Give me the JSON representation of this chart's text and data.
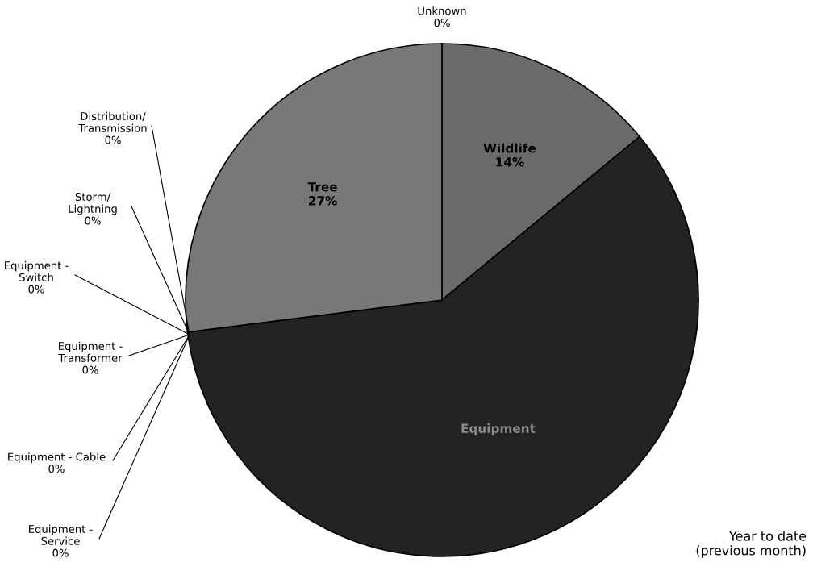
{
  "chart_data": {
    "type": "pie",
    "categories": [
      "Unknown",
      "Wildlife",
      "Equipment",
      "Equipment -\nService",
      "Equipment - Cable",
      "Equipment -\nTransformer",
      "Equipment -\nSwitch",
      "Storm/\nLightning",
      "Distribution/\nTransmission",
      "Tree"
    ],
    "values": [
      0,
      14,
      59,
      0,
      0,
      0,
      0,
      0,
      0,
      27
    ],
    "value_labels": [
      "0%",
      "14%",
      null,
      "0%",
      "0%",
      "0%",
      "0%",
      "0%",
      "0%",
      "27%"
    ],
    "colors": [
      "#c8c8c8",
      "#6a6a6a",
      "#232323",
      "#9a9a9a",
      "#9a9a9a",
      "#9a9a9a",
      "#9a9a9a",
      "#9a9a9a",
      "#9a9a9a",
      "#787878"
    ],
    "annotations": [
      "Year to date\n(previous month)"
    ]
  }
}
